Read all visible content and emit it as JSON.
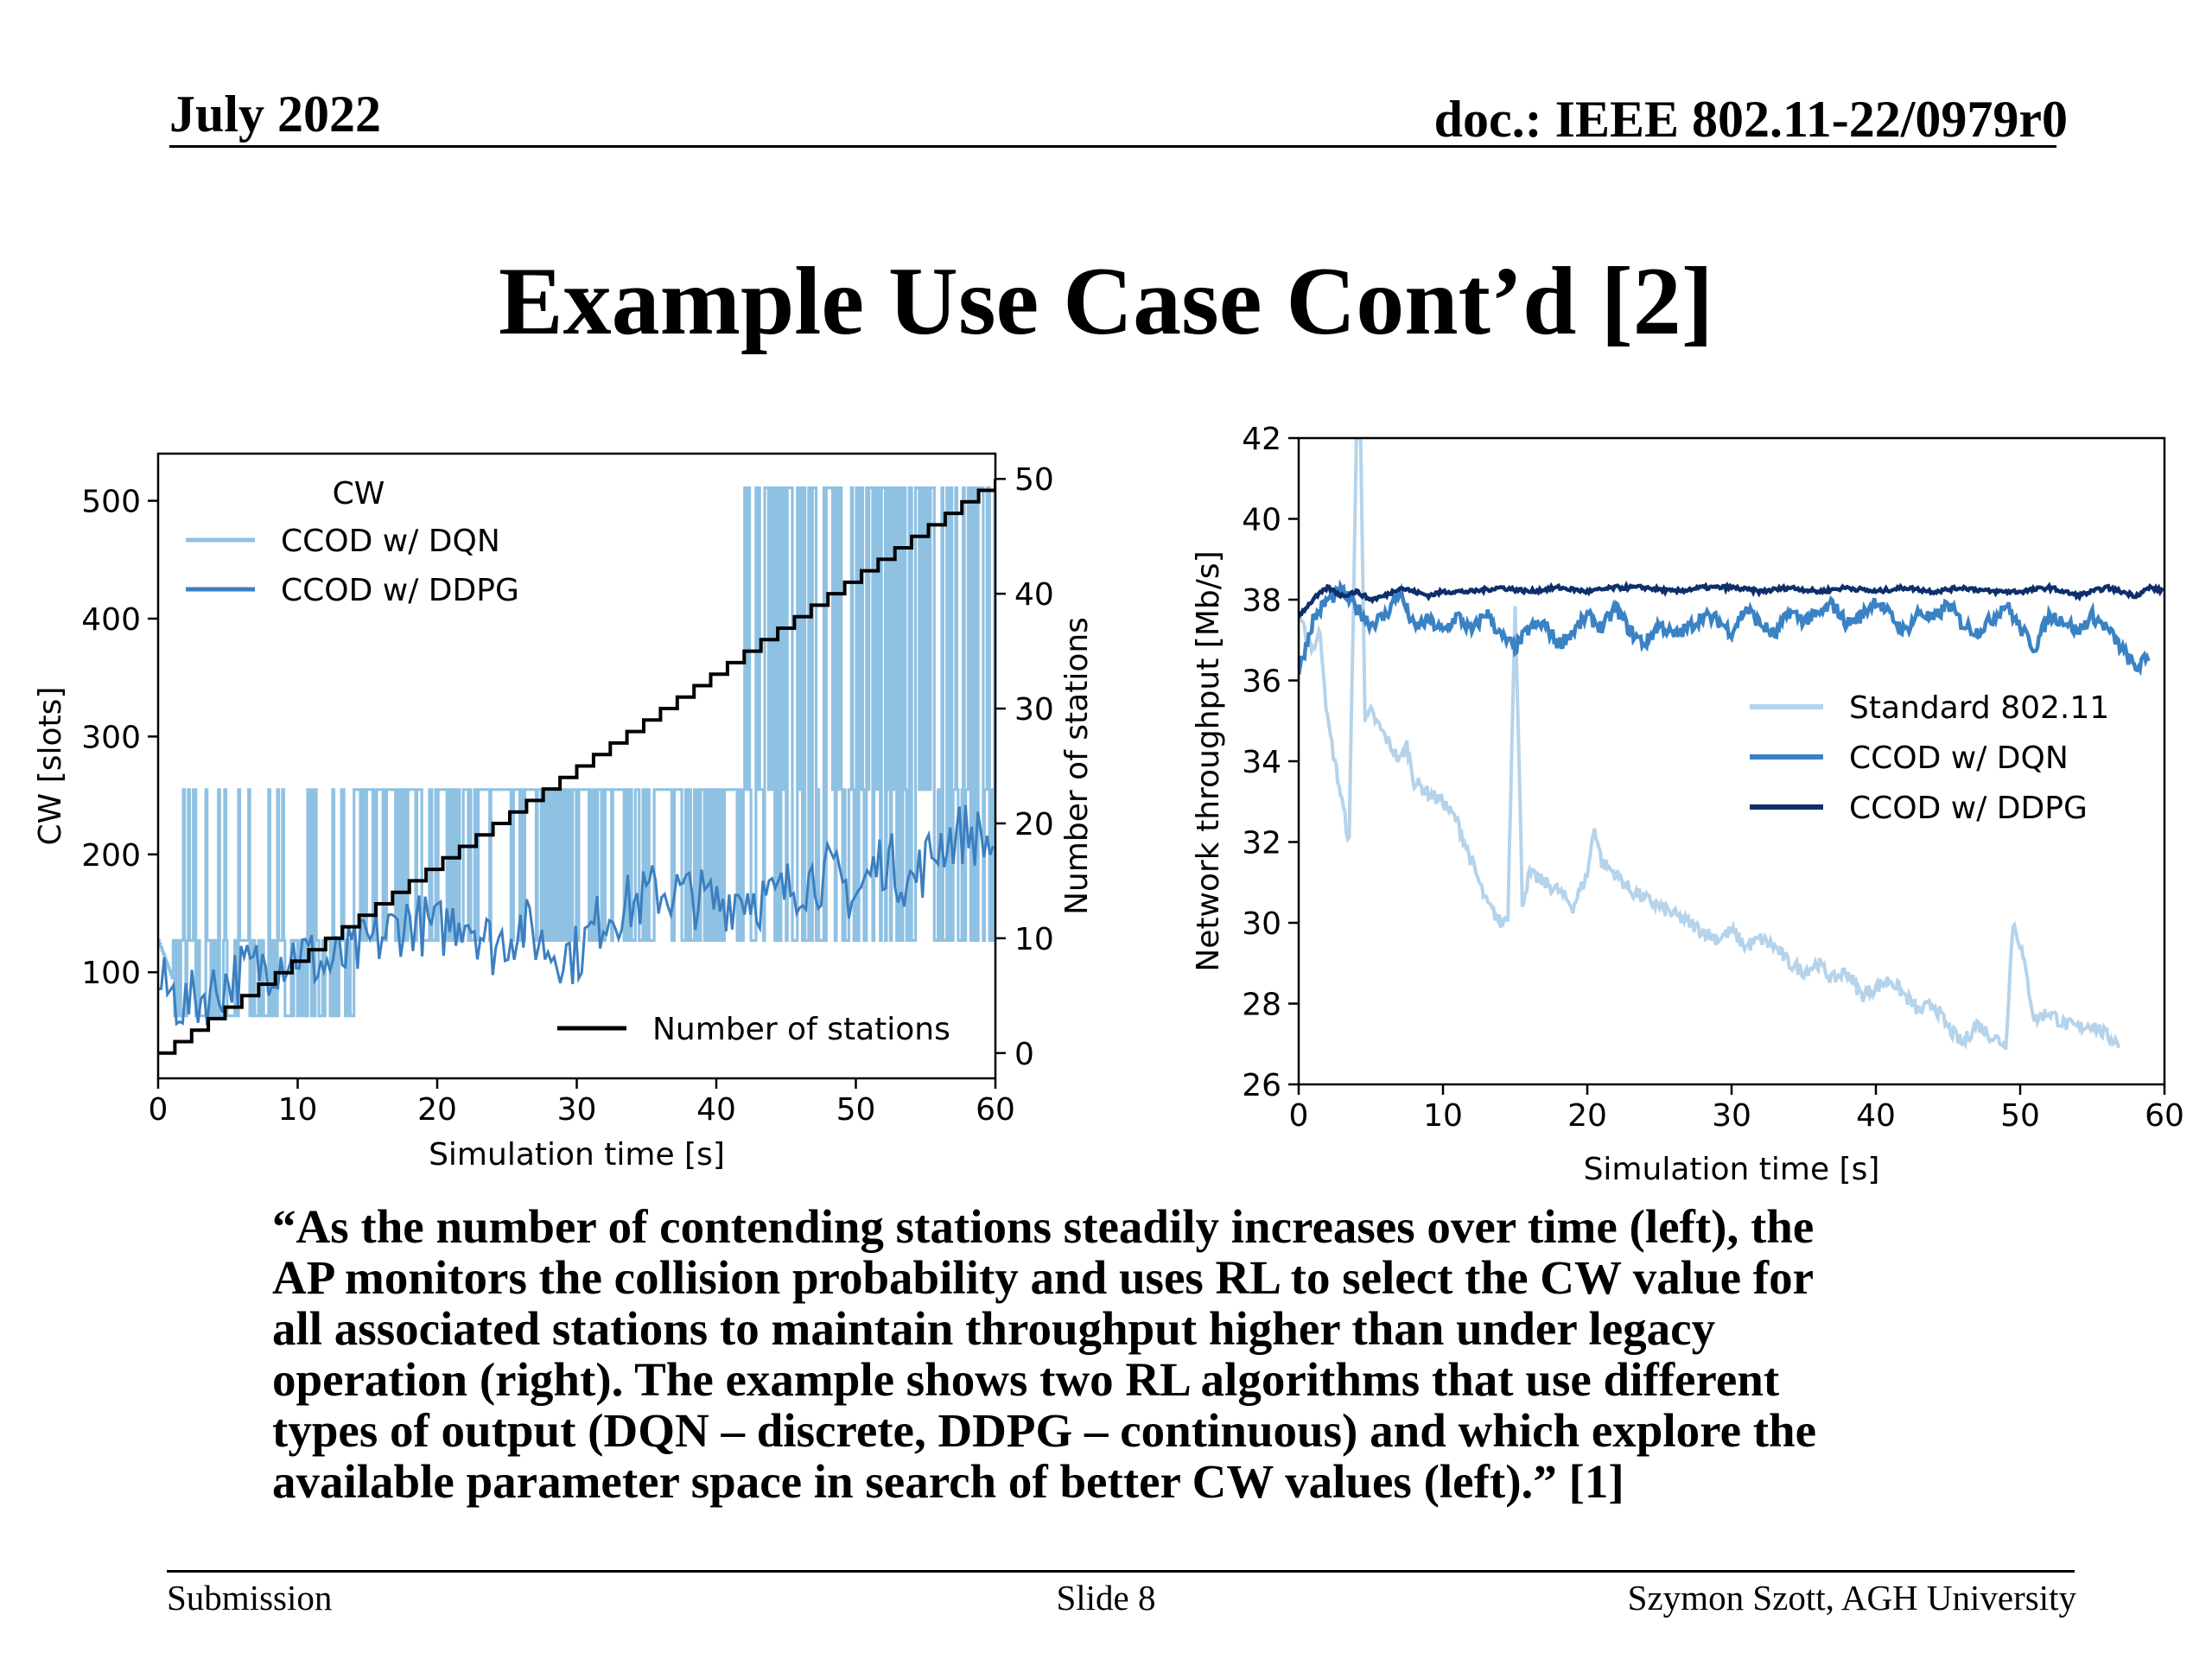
{
  "header": {
    "date": "July 2022",
    "doc": "doc.: IEEE 802.11-22/0979r0"
  },
  "title": "Example Use Case Cont’d [2]",
  "quote_lines": [
    "“As the number of contending stations steadily increases over time (left), the",
    "AP monitors the collision probability and uses RL to select the CW value for",
    "all associated stations to maintain throughput higher than under legacy",
    "operation (right). The example shows two RL algorithms that use different",
    "types of output (DQN – discrete, DDPG – continuous) and which explore the",
    "available parameter space in search of better CW values (left).” [1]"
  ],
  "footer": {
    "left": "Submission",
    "center": "Slide 8",
    "right": "Szymon Szott, AGH University"
  },
  "chart_data": [
    {
      "type": "line",
      "xlabel": "Simulation time [s]",
      "ylabel": "CW [slots]",
      "ylabel_right": "Number of stations",
      "xlim": [
        0,
        60
      ],
      "ylim": [
        10,
        540
      ],
      "ylim_right": [
        -2.2,
        52.2
      ],
      "xticks": [
        0,
        10,
        20,
        30,
        40,
        50,
        60
      ],
      "yticks": [
        100,
        200,
        300,
        400,
        500
      ],
      "yticks_right": [
        0,
        10,
        20,
        30,
        40,
        50
      ],
      "legend_title": "CW",
      "legend_position": "upper-left",
      "legend2_position": "lower-right",
      "series": [
        {
          "name": "CCOD w/ DQN",
          "axis": "left",
          "color": "#8fc1e3",
          "description": "discrete CW values",
          "levels": [
            63,
            127,
            255,
            511
          ],
          "x": [
            0,
            2,
            5,
            9,
            11,
            14,
            20,
            27,
            32,
            35,
            40,
            42,
            45,
            48,
            51,
            55,
            58,
            60
          ],
          "values": [
            127,
            63,
            127,
            63,
            127,
            255,
            255,
            255,
            127,
            255,
            127,
            511,
            255,
            511,
            255,
            511,
            255,
            511
          ]
        },
        {
          "name": "CCOD w/ DDPG",
          "axis": "left",
          "color": "#3b7fc0",
          "x": [
            0,
            2,
            4,
            6,
            8,
            10,
            12,
            14,
            16,
            18,
            20,
            22,
            24,
            26,
            28,
            30,
            32,
            34,
            36,
            38,
            40,
            42,
            44,
            46,
            48,
            50,
            52,
            54,
            56,
            58,
            60
          ],
          "values": [
            90,
            72,
            85,
            100,
            108,
            118,
            105,
            115,
            130,
            145,
            135,
            150,
            122,
            140,
            120,
            115,
            150,
            158,
            170,
            165,
            158,
            168,
            160,
            178,
            183,
            165,
            198,
            175,
            210,
            220,
            205
          ]
        },
        {
          "name": "Number of stations",
          "axis": "right",
          "color": "#000000",
          "x": [
            0,
            1.2,
            2.4,
            3.6,
            4.8,
            6,
            7.2,
            8.4,
            9.6,
            10.8,
            12,
            13.2,
            14.4,
            15.6,
            16.8,
            18,
            19.2,
            20.4,
            21.6,
            22.8,
            24,
            25.2,
            26.4,
            27.6,
            28.8,
            30,
            31.2,
            32.4,
            33.6,
            34.8,
            36,
            37.2,
            38.4,
            39.6,
            40.8,
            42,
            43.2,
            44.4,
            45.6,
            46.8,
            48,
            49.2,
            50.4,
            51.6,
            52.8,
            54,
            55.2,
            56.4,
            57.6,
            58.8,
            60
          ],
          "values": [
            0,
            1,
            2,
            3,
            4,
            5,
            6,
            7,
            8,
            9,
            10,
            11,
            12,
            13,
            14,
            15,
            16,
            17,
            18,
            19,
            20,
            21,
            22,
            23,
            24,
            25,
            26,
            27,
            28,
            29,
            30,
            31,
            32,
            33,
            34,
            35,
            36,
            37,
            38,
            39,
            40,
            41,
            42,
            43,
            44,
            45,
            46,
            47,
            48,
            49,
            50
          ]
        }
      ]
    },
    {
      "type": "line",
      "xlabel": "Simulation time [s]",
      "ylabel": "Network throughput [Mb/s]",
      "xlim": [
        0,
        60
      ],
      "ylim": [
        26,
        42
      ],
      "xticks": [
        0,
        10,
        20,
        30,
        40,
        50,
        60
      ],
      "yticks": [
        26,
        28,
        30,
        32,
        34,
        36,
        38,
        40,
        42
      ],
      "legend_position": "center-right",
      "series": [
        {
          "name": "Standard 802.11",
          "color": "#b5d3ea",
          "x": [
            0,
            1,
            1.5,
            2,
            3,
            3.5,
            4,
            4.3,
            4.6,
            5,
            6,
            7,
            7.5,
            8,
            9,
            10,
            11,
            12,
            13,
            14,
            14.5,
            15,
            15.5,
            16,
            17,
            18,
            19,
            20,
            20.5,
            21,
            22,
            23,
            24,
            25,
            26,
            27,
            28,
            29,
            30,
            31,
            32,
            33,
            34,
            35,
            36,
            37,
            38,
            39,
            40,
            41,
            42,
            43,
            44,
            45,
            46,
            47,
            48,
            49,
            49.5,
            50,
            51,
            52,
            53,
            54,
            55,
            56,
            57
          ],
          "values": [
            37.5,
            36.8,
            37.2,
            35,
            33,
            32,
            42,
            42,
            35,
            35.2,
            34.6,
            34,
            34.4,
            33.5,
            33.2,
            33,
            32.5,
            31.5,
            30.5,
            30,
            30.2,
            38,
            30.5,
            31.2,
            31,
            30.8,
            30.4,
            31.2,
            32.4,
            31.5,
            31.2,
            30.8,
            30.6,
            30.4,
            30.2,
            30,
            29.8,
            29.6,
            29.8,
            29.4,
            29.6,
            29.4,
            29,
            28.8,
            29,
            28.6,
            28.8,
            28.2,
            28.4,
            28.6,
            28.2,
            27.8,
            28,
            27.4,
            27,
            27.5,
            27.2,
            27,
            30,
            29.5,
            27.6,
            27.8,
            27.5,
            27.4,
            27.5,
            27.2,
            27
          ]
        },
        {
          "name": "CCOD w/ DQN",
          "color": "#3a82c4",
          "x": [
            0,
            1,
            2,
            3,
            4,
            5,
            6,
            7,
            8,
            9,
            10,
            11,
            12,
            13,
            14,
            15,
            16,
            17,
            18,
            19,
            20,
            21,
            22,
            23,
            24,
            25,
            26,
            27,
            28,
            29,
            30,
            31,
            32,
            33,
            34,
            35,
            36,
            37,
            38,
            39,
            40,
            41,
            42,
            43,
            44,
            45,
            46,
            47,
            48,
            49,
            50,
            51,
            52,
            53,
            54,
            55,
            56,
            57,
            58,
            59
          ],
          "values": [
            36.2,
            37.5,
            38,
            38.2,
            37.8,
            37.4,
            37.6,
            38.2,
            37.3,
            37.5,
            37.2,
            37.6,
            37.2,
            37.7,
            37.1,
            36.8,
            37.3,
            37.4,
            36.9,
            37.2,
            37.6,
            37.3,
            37.8,
            37.2,
            36.9,
            37.4,
            37.1,
            37.3,
            37.6,
            37.5,
            37.2,
            37.8,
            37.4,
            37.1,
            37.7,
            37.5,
            37.6,
            37.9,
            37.4,
            37.6,
            38,
            37.6,
            37.2,
            37.7,
            37.5,
            37.9,
            37.4,
            37.2,
            37.5,
            37.9,
            37.3,
            36.8,
            37.6,
            37.5,
            37.2,
            37.6,
            37.3,
            36.8,
            36.3,
            36.6
          ]
        },
        {
          "name": "CCOD w/ DDPG",
          "color": "#0d2f6b",
          "x": [
            0,
            1,
            2,
            3,
            4,
            5,
            6,
            7,
            8,
            9,
            10,
            12,
            14,
            16,
            18,
            20,
            22,
            24,
            26,
            28,
            30,
            32,
            34,
            36,
            38,
            40,
            42,
            44,
            46,
            48,
            50,
            52,
            54,
            56,
            58,
            59,
            60
          ],
          "values": [
            37.6,
            38,
            38.3,
            38.1,
            38.2,
            38,
            38.1,
            38.3,
            38.2,
            38.1,
            38.2,
            38.2,
            38.3,
            38.2,
            38.3,
            38.2,
            38.3,
            38.3,
            38.2,
            38.3,
            38.3,
            38.2,
            38.3,
            38.2,
            38.3,
            38.2,
            38.3,
            38.2,
            38.3,
            38.2,
            38.2,
            38.3,
            38.1,
            38.3,
            38.1,
            38.3,
            38.2
          ]
        }
      ]
    }
  ]
}
